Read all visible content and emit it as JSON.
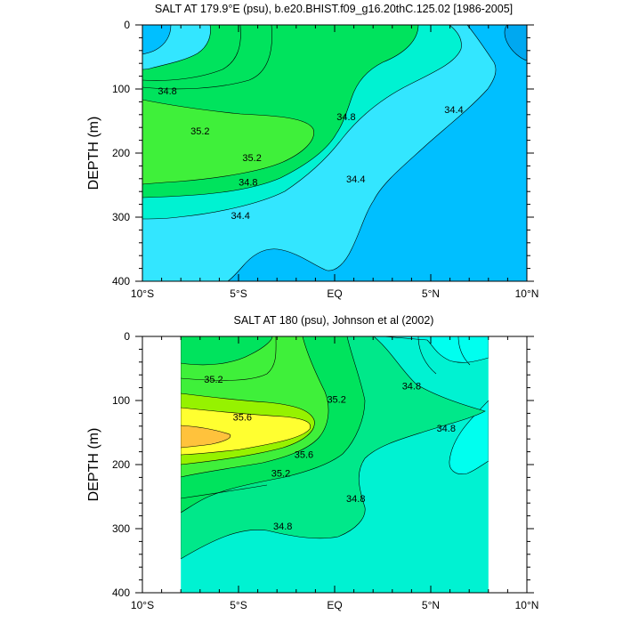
{
  "chart_data": [
    {
      "type": "contour",
      "title": "SALT AT 179.9°E (psu), b.e20.BHIST.f09_g16.20thC.125.02 [1986-2005]",
      "ylabel": "DEPTH (m)",
      "xlabel": "",
      "x_tick_labels": [
        "10°S",
        "5°S",
        "EQ",
        "5°N",
        "10°N"
      ],
      "x_tick_values": [
        -10,
        -5,
        0,
        5,
        10
      ],
      "y_tick_values": [
        0,
        100,
        200,
        300,
        400
      ],
      "xlim": [
        -10,
        10
      ],
      "ylim": [
        400,
        0
      ],
      "y_inverted": true,
      "data_x_range": [
        -10,
        10
      ],
      "contour_labels": [
        {
          "text": "34.8",
          "lat": -8.7,
          "depth": 103
        },
        {
          "text": "35.2",
          "lat": -7.0,
          "depth": 165
        },
        {
          "text": "35.2",
          "lat": -4.3,
          "depth": 207
        },
        {
          "text": "34.8",
          "lat": -4.5,
          "depth": 245
        },
        {
          "text": "34.4",
          "lat": -4.9,
          "depth": 297
        },
        {
          "text": "34.8",
          "lat": 0.6,
          "depth": 143
        },
        {
          "text": "34.4",
          "lat": 1.1,
          "depth": 240
        },
        {
          "text": "34.4",
          "lat": 6.2,
          "depth": 132
        }
      ]
    },
    {
      "type": "contour",
      "title": "SALT AT 180 (psu), Johnson et al (2002)",
      "ylabel": "DEPTH (m)",
      "xlabel": "",
      "x_tick_labels": [
        "10°S",
        "5°S",
        "EQ",
        "5°N",
        "10°N"
      ],
      "x_tick_values": [
        -10,
        -5,
        0,
        5,
        10
      ],
      "y_tick_values": [
        0,
        100,
        200,
        300,
        400
      ],
      "xlim": [
        -10,
        10
      ],
      "ylim": [
        400,
        0
      ],
      "y_inverted": true,
      "data_x_range": [
        -8,
        8
      ],
      "contour_labels": [
        {
          "text": "35.2",
          "lat": -6.3,
          "depth": 67
        },
        {
          "text": "35.6",
          "lat": -4.8,
          "depth": 126
        },
        {
          "text": "35.6",
          "lat": -1.6,
          "depth": 184
        },
        {
          "text": "35.2",
          "lat": -2.8,
          "depth": 213
        },
        {
          "text": "35.2",
          "lat": 0.1,
          "depth": 98
        },
        {
          "text": "34.8",
          "lat": 4.0,
          "depth": 77
        },
        {
          "text": "34.8",
          "lat": 5.8,
          "depth": 143
        },
        {
          "text": "34.8",
          "lat": 1.1,
          "depth": 253
        },
        {
          "text": "34.8",
          "lat": -2.7,
          "depth": 296
        }
      ]
    }
  ],
  "colors": {
    "s34_0": "#00bfff",
    "s34_4": "#33e6ff",
    "s34_8": "#00f2d2",
    "s35_2": "#00e35d",
    "s35_2b": "#3ff03a",
    "s35_6": "#96f200",
    "s35_6b": "#ffff30",
    "s36_0": "#ffc23c",
    "line": "#000000"
  }
}
